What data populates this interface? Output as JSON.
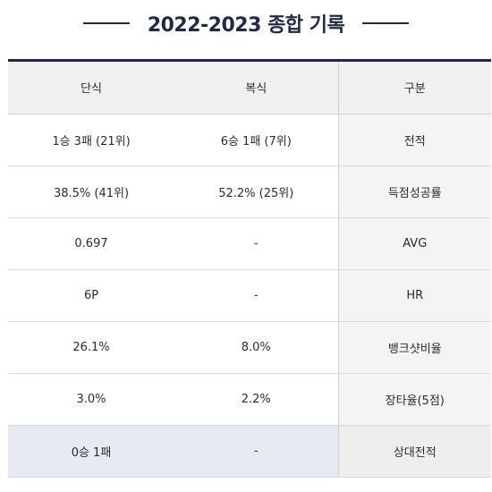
{
  "title": "2022-2023 종합 기록",
  "table": {
    "headers": [
      "단식",
      "복식",
      "구분"
    ],
    "rows": [
      {
        "singles": "1승 3패 (21위)",
        "doubles": "6승 1패 (7위)",
        "label": "전적"
      },
      {
        "singles": "38.5% (41위)",
        "doubles": "52.2% (25위)",
        "label": "득점성공률"
      },
      {
        "singles": "0.697",
        "doubles": "-",
        "label": "AVG"
      },
      {
        "singles": "6P",
        "doubles": "-",
        "label": "HR"
      },
      {
        "singles": "26.1%",
        "doubles": "8.0%",
        "label": "뱅크샷비율"
      },
      {
        "singles": "3.0%",
        "doubles": "2.2%",
        "label": "장타율(5점)"
      },
      {
        "singles": "0승 1패",
        "doubles": "-",
        "label": "상대전적"
      }
    ]
  }
}
